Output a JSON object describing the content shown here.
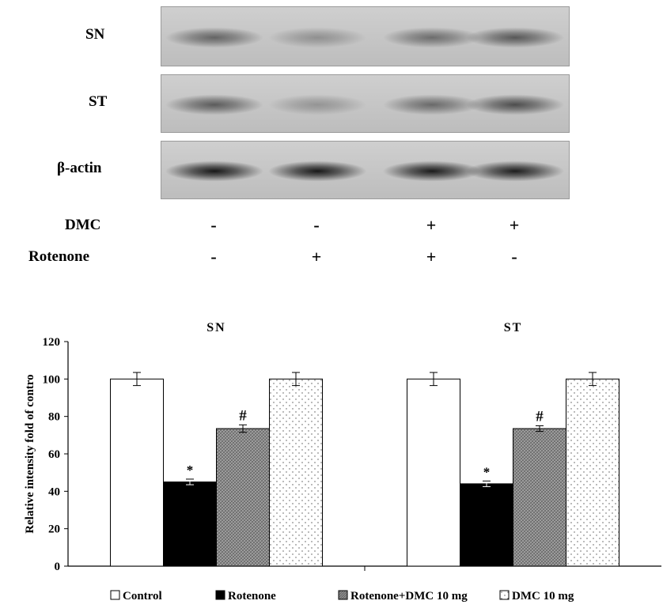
{
  "blot": {
    "rows": [
      {
        "label": "SN",
        "intensities": [
          0.55,
          0.3,
          0.5,
          0.62
        ]
      },
      {
        "label": "ST",
        "intensities": [
          0.6,
          0.28,
          0.52,
          0.68
        ]
      },
      {
        "label": "β-actin",
        "intensities": [
          0.98,
          0.98,
          0.96,
          0.95
        ]
      }
    ],
    "treatments": [
      {
        "label": "DMC",
        "signs": [
          "-",
          "-",
          "+",
          "+"
        ]
      },
      {
        "label": "Rotenone",
        "signs": [
          "-",
          "+",
          "+",
          "-"
        ]
      }
    ]
  },
  "chart_data": {
    "type": "bar",
    "ylabel": "Relative intensity fold of contro",
    "ylim": [
      0,
      120
    ],
    "yticks": [
      0,
      20,
      40,
      60,
      80,
      100,
      120
    ],
    "groups": [
      "SN",
      "ST"
    ],
    "series": [
      {
        "name": "Control",
        "values": [
          100,
          100
        ],
        "errors": [
          3.5,
          3.5
        ],
        "annotations": [
          "",
          ""
        ],
        "fill": "white"
      },
      {
        "name": "Rotenone",
        "values": [
          45,
          44
        ],
        "errors": [
          1.5,
          1.5
        ],
        "annotations": [
          "*",
          "*"
        ],
        "fill": "black"
      },
      {
        "name": "Rotenone+DMC 10 mg",
        "values": [
          73.5,
          73.5
        ],
        "errors": [
          2,
          1.5
        ],
        "annotations": [
          "#",
          "#"
        ],
        "fill": "gray-pattern"
      },
      {
        "name": "DMC 10 mg",
        "values": [
          100,
          100
        ],
        "errors": [
          3.5,
          3.5
        ],
        "annotations": [
          "",
          ""
        ],
        "fill": "dots"
      }
    ],
    "legend_position": "bottom",
    "grid": false
  }
}
